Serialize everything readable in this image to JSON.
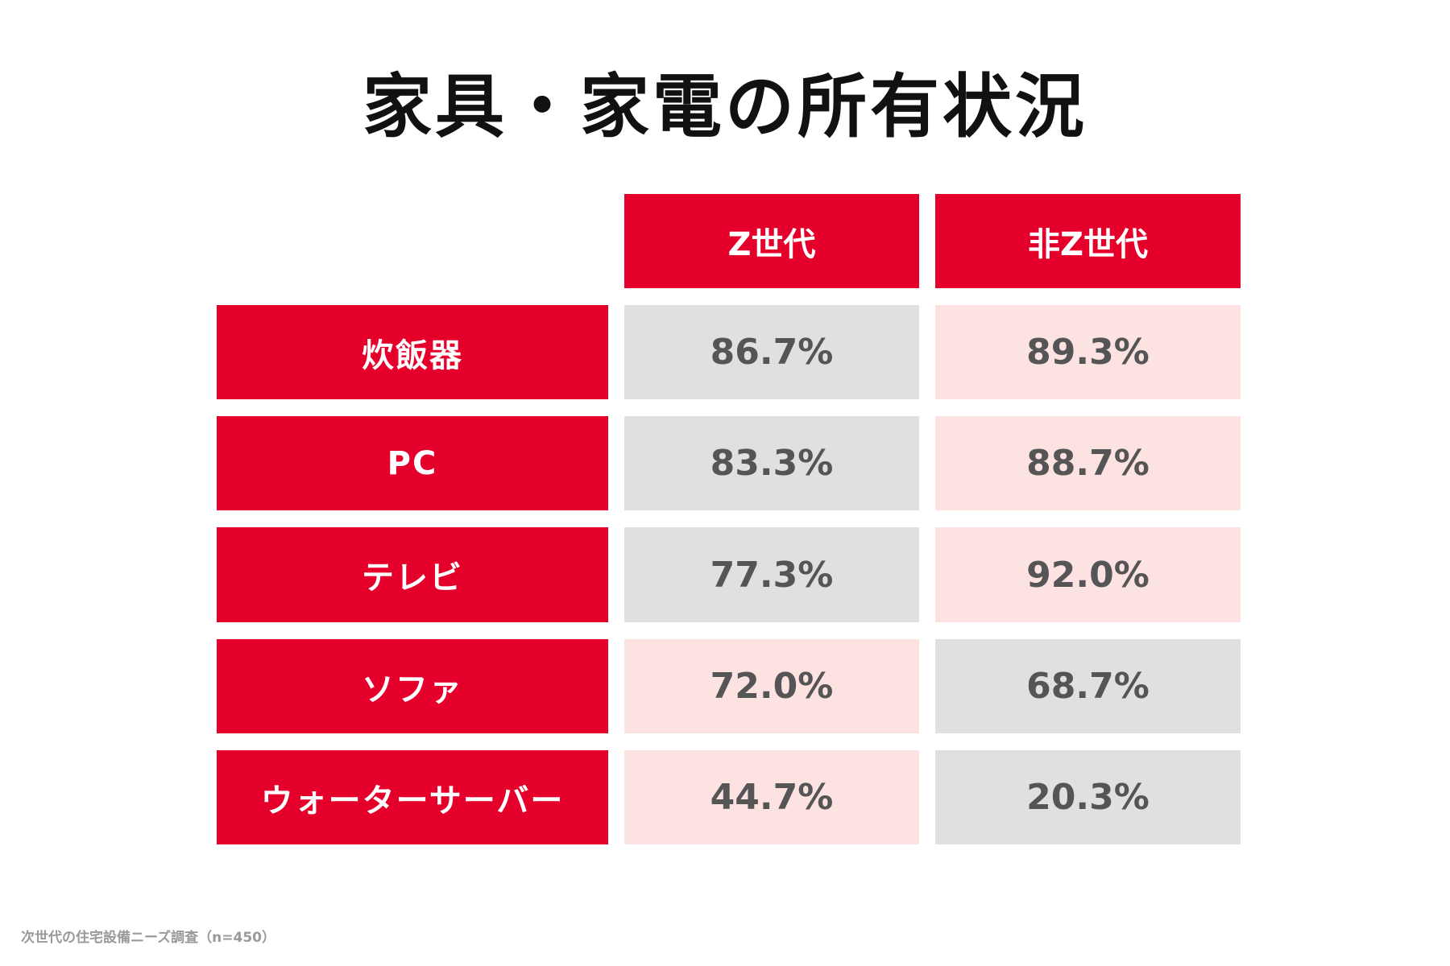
{
  "title": "家具・家電の所有状況",
  "footnote": "次世代の住宅設備ニーズ調査（n=450）",
  "colors": {
    "header_bg": "#e4002b",
    "header_text": "#ffffff",
    "higher_bg": "#fde2e2",
    "lower_bg": "#e0e0e0",
    "value_text": "#555555"
  },
  "chart_data": {
    "type": "table",
    "title": "家具・家電の所有状況",
    "columns": [
      "Z世代",
      "非Z世代"
    ],
    "rows": [
      {
        "label": "炊飯器",
        "values": [
          "86.7%",
          "89.3%"
        ],
        "shade": [
          "lower",
          "higher"
        ]
      },
      {
        "label": "PC",
        "values": [
          "83.3%",
          "88.7%"
        ],
        "shade": [
          "lower",
          "higher"
        ]
      },
      {
        "label": "テレビ",
        "values": [
          "77.3%",
          "92.0%"
        ],
        "shade": [
          "lower",
          "higher"
        ]
      },
      {
        "label": "ソファ",
        "values": [
          "72.0%",
          "68.7%"
        ],
        "shade": [
          "higher",
          "lower"
        ]
      },
      {
        "label": "ウォーターサーバー",
        "values": [
          "44.7%",
          "20.3%"
        ],
        "shade": [
          "higher",
          "lower"
        ]
      }
    ],
    "numeric_values": [
      [
        86.7,
        89.3
      ],
      [
        83.3,
        88.7
      ],
      [
        77.3,
        92.0
      ],
      [
        72.0,
        68.7
      ],
      [
        44.7,
        20.3
      ]
    ],
    "unit": "%"
  }
}
